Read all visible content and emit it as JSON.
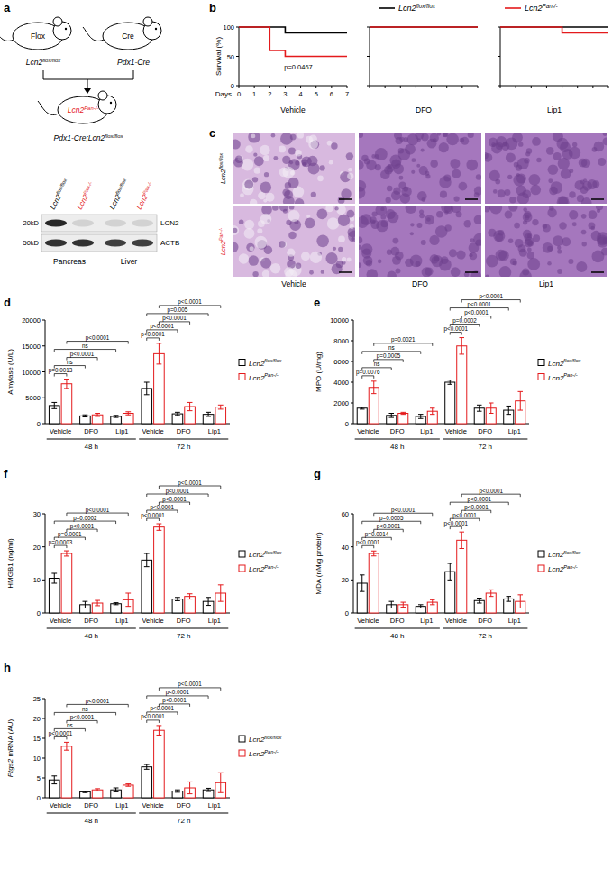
{
  "panel_a": {
    "panel": "a",
    "mice": [
      {
        "tag": "Flox",
        "label": "Lcn2flox/flox"
      },
      {
        "tag": "Cre",
        "label": "Pdx1-Cre"
      }
    ],
    "offspring": {
      "tag": "Lcn2Pan-/-",
      "label": "Pdx1-Cre;Lcn2flox/flox"
    },
    "blot": {
      "lanes": [
        "Lcn2flox/flox",
        "Lcn2Pan-/-",
        "Lcn2flox/flox",
        "Lcn2Pan-/-"
      ],
      "lane_colors": [
        "#000000",
        "#e41a1c",
        "#000000",
        "#e41a1c"
      ],
      "rows": [
        {
          "marker": "20kD",
          "protein": "LCN2"
        },
        {
          "marker": "50kD",
          "protein": "ACTB"
        }
      ],
      "tissues": [
        "Pancreas",
        "Liver"
      ]
    }
  },
  "panel_c": {
    "panel": "c",
    "rows": [
      "Lcn2flox/flox",
      "Lcn2Pan-/-"
    ],
    "row_colors": [
      "#000000",
      "#e41a1c"
    ],
    "columns": [
      "Vehicle",
      "DFO",
      "Lip1"
    ]
  },
  "chart_data": [
    {
      "panel": "b",
      "type": "line",
      "title": "Vehicle",
      "xlabel": "Days",
      "ylabel": "Survival (%)",
      "xlim": [
        0,
        7
      ],
      "xticks": [
        0,
        1,
        2,
        3,
        4,
        5,
        6,
        7
      ],
      "ylim": [
        0,
        100
      ],
      "yticks": [
        0,
        50,
        100
      ],
      "legend": "top",
      "annotations": [
        "p=0.0467"
      ],
      "series": [
        {
          "name": "Lcn2flox/flox",
          "color": "#000000",
          "x": [
            0,
            3,
            3,
            7
          ],
          "values": [
            100,
            100,
            90,
            90
          ]
        },
        {
          "name": "Lcn2Pan-/-",
          "color": "#e41a1c",
          "x": [
            0,
            2,
            2,
            3,
            3,
            7
          ],
          "values": [
            100,
            100,
            60,
            60,
            50,
            50
          ]
        }
      ]
    },
    {
      "type": "line",
      "title": "DFO",
      "tick_labels": false,
      "xlim": [
        0,
        7
      ],
      "xticks": [
        0,
        1,
        2,
        3,
        4,
        5,
        6,
        7
      ],
      "ylim": [
        0,
        100
      ],
      "yticks": [
        0,
        50,
        100
      ],
      "series": [
        {
          "name": "Lcn2flox/flox",
          "color": "#000000",
          "x": [
            0,
            7
          ],
          "values": [
            100,
            100
          ]
        },
        {
          "name": "Lcn2Pan-/-",
          "color": "#e41a1c",
          "x": [
            0,
            7
          ],
          "values": [
            100,
            100
          ]
        }
      ]
    },
    {
      "type": "line",
      "title": "Lip1",
      "tick_labels": false,
      "xlim": [
        0,
        7
      ],
      "xticks": [
        0,
        1,
        2,
        3,
        4,
        5,
        6,
        7
      ],
      "ylim": [
        0,
        100
      ],
      "yticks": [
        0,
        50,
        100
      ],
      "series": [
        {
          "name": "Lcn2flox/flox",
          "color": "#000000",
          "x": [
            0,
            7
          ],
          "values": [
            100,
            100
          ]
        },
        {
          "name": "Lcn2Pan-/-",
          "color": "#e41a1c",
          "x": [
            0,
            4,
            4,
            7
          ],
          "values": [
            100,
            100,
            90,
            90
          ]
        }
      ]
    },
    {
      "panel": "d",
      "type": "bar",
      "ylabel": "Amylase (U/L)",
      "categories": [
        "Vehicle",
        "DFO",
        "Lip1",
        "Vehicle",
        "DFO",
        "Lip1"
      ],
      "groups": [
        {
          "label": "48 h",
          "categories": [
            0,
            1,
            2
          ]
        },
        {
          "label": "72 h",
          "categories": [
            3,
            4,
            5
          ]
        }
      ],
      "ylim": [
        0,
        20000
      ],
      "yticks": [
        0,
        5000,
        10000,
        15000,
        20000
      ],
      "legend": "right",
      "series": [
        {
          "name": "Lcn2flox/flox",
          "color": "#000000",
          "values": [
            3500,
            1500,
            1400,
            6800,
            1900,
            1800
          ],
          "errors": [
            600,
            200,
            200,
            1200,
            300,
            400
          ]
        },
        {
          "name": "Lcn2Pan-/-",
          "color": "#e41a1c",
          "values": [
            7700,
            1700,
            2000,
            13500,
            3300,
            3200
          ],
          "errors": [
            900,
            300,
            300,
            2000,
            800,
            400
          ]
        }
      ],
      "comparisons": [
        {
          "from": [
            0,
            0
          ],
          "to": [
            0,
            1
          ],
          "label": "p=0.0013"
        },
        {
          "from": [
            0,
            0
          ],
          "to": [
            1,
            0
          ],
          "label": "ns"
        },
        {
          "from": [
            0,
            1
          ],
          "to": [
            1,
            1
          ],
          "label": "p<0.0001"
        },
        {
          "from": [
            0,
            0
          ],
          "to": [
            2,
            0
          ],
          "label": "ns"
        },
        {
          "from": [
            0,
            1
          ],
          "to": [
            2,
            1
          ],
          "label": "p<0.0001"
        },
        {
          "from": [
            3,
            0
          ],
          "to": [
            3,
            1
          ],
          "label": "p<0.0001"
        },
        {
          "from": [
            3,
            0
          ],
          "to": [
            4,
            0
          ],
          "label": "p<0.0001"
        },
        {
          "from": [
            3,
            1
          ],
          "to": [
            4,
            1
          ],
          "label": "p<0.0001"
        },
        {
          "from": [
            3,
            0
          ],
          "to": [
            5,
            0
          ],
          "label": "p=0.005"
        },
        {
          "from": [
            3,
            1
          ],
          "to": [
            5,
            1
          ],
          "label": "p<0.0001"
        }
      ]
    },
    {
      "panel": "e",
      "type": "bar",
      "ylabel": "MPO (U/mg)",
      "categories": [
        "Vehicle",
        "DFO",
        "Lip1",
        "Vehicle",
        "DFO",
        "Lip1"
      ],
      "groups": [
        {
          "label": "48 h",
          "categories": [
            0,
            1,
            2
          ]
        },
        {
          "label": "72 h",
          "categories": [
            3,
            4,
            5
          ]
        }
      ],
      "ylim": [
        0,
        10000
      ],
      "yticks": [
        0,
        2000,
        4000,
        6000,
        8000,
        10000
      ],
      "legend": "right",
      "series": [
        {
          "name": "Lcn2flox/flox",
          "color": "#000000",
          "values": [
            1500,
            800,
            700,
            4000,
            1500,
            1300
          ],
          "errors": [
            100,
            200,
            200,
            200,
            300,
            400
          ]
        },
        {
          "name": "Lcn2Pan-/-",
          "color": "#e41a1c",
          "values": [
            3500,
            1000,
            1200,
            7500,
            1500,
            2200
          ],
          "errors": [
            600,
            100,
            300,
            800,
            500,
            900
          ]
        }
      ],
      "comparisons": [
        {
          "from": [
            0,
            0
          ],
          "to": [
            0,
            1
          ],
          "label": "p=0.0076"
        },
        {
          "from": [
            0,
            0
          ],
          "to": [
            1,
            0
          ],
          "label": "ns"
        },
        {
          "from": [
            0,
            1
          ],
          "to": [
            1,
            1
          ],
          "label": "p=0.0005"
        },
        {
          "from": [
            0,
            0
          ],
          "to": [
            2,
            0
          ],
          "label": "ns"
        },
        {
          "from": [
            0,
            1
          ],
          "to": [
            2,
            1
          ],
          "label": "p=0.0021"
        },
        {
          "from": [
            3,
            0
          ],
          "to": [
            3,
            1
          ],
          "label": "p<0.0001"
        },
        {
          "from": [
            3,
            0
          ],
          "to": [
            4,
            0
          ],
          "label": "p=0.0002"
        },
        {
          "from": [
            3,
            1
          ],
          "to": [
            4,
            1
          ],
          "label": "p<0.0001"
        },
        {
          "from": [
            3,
            0
          ],
          "to": [
            5,
            0
          ],
          "label": "p<0.0001"
        },
        {
          "from": [
            3,
            1
          ],
          "to": [
            5,
            1
          ],
          "label": "p<0.0001"
        }
      ]
    },
    {
      "panel": "f",
      "type": "bar",
      "ylabel": "HMGB1 (ng/ml)",
      "categories": [
        "Vehicle",
        "DFO",
        "Lip1",
        "Vehicle",
        "DFO",
        "Lip1"
      ],
      "groups": [
        {
          "label": "48 h",
          "categories": [
            0,
            1,
            2
          ]
        },
        {
          "label": "72 h",
          "categories": [
            3,
            4,
            5
          ]
        }
      ],
      "ylim": [
        0,
        30
      ],
      "yticks": [
        0,
        10,
        20,
        30
      ],
      "legend": "right",
      "series": [
        {
          "name": "Lcn2flox/flox",
          "color": "#000000",
          "values": [
            10.5,
            2.5,
            2.8,
            16,
            4.2,
            3.5
          ],
          "errors": [
            1.5,
            1,
            0.3,
            2,
            0.5,
            1.2
          ]
        },
        {
          "name": "Lcn2Pan-/-",
          "color": "#e41a1c",
          "values": [
            18,
            3,
            4,
            26,
            5,
            6
          ],
          "errors": [
            0.8,
            0.8,
            2,
            1,
            0.8,
            2.5
          ]
        }
      ],
      "comparisons": [
        {
          "from": [
            0,
            0
          ],
          "to": [
            0,
            1
          ],
          "label": "p=0.0003"
        },
        {
          "from": [
            0,
            0
          ],
          "to": [
            1,
            0
          ],
          "label": "p=0.0001"
        },
        {
          "from": [
            0,
            1
          ],
          "to": [
            1,
            1
          ],
          "label": "p<0.0001"
        },
        {
          "from": [
            0,
            0
          ],
          "to": [
            2,
            0
          ],
          "label": "p=0.0002"
        },
        {
          "from": [
            0,
            1
          ],
          "to": [
            2,
            1
          ],
          "label": "p<0.0001"
        },
        {
          "from": [
            3,
            0
          ],
          "to": [
            3,
            1
          ],
          "label": "p<0.0001"
        },
        {
          "from": [
            3,
            0
          ],
          "to": [
            4,
            0
          ],
          "label": "p<0.0001"
        },
        {
          "from": [
            3,
            1
          ],
          "to": [
            4,
            1
          ],
          "label": "p<0.0001"
        },
        {
          "from": [
            3,
            0
          ],
          "to": [
            5,
            0
          ],
          "label": "p<0.0001"
        },
        {
          "from": [
            3,
            1
          ],
          "to": [
            5,
            1
          ],
          "label": "p<0.0001"
        }
      ]
    },
    {
      "panel": "g",
      "type": "bar",
      "ylabel": "MDA (nM/g protein)",
      "categories": [
        "Vehicle",
        "DFO",
        "Lip1",
        "Vehicle",
        "DFO",
        "Lip1"
      ],
      "groups": [
        {
          "label": "48 h",
          "categories": [
            0,
            1,
            2
          ]
        },
        {
          "label": "72 h",
          "categories": [
            3,
            4,
            5
          ]
        }
      ],
      "ylim": [
        0,
        60
      ],
      "yticks": [
        0,
        20,
        40,
        60
      ],
      "legend": "right",
      "series": [
        {
          "name": "Lcn2flox/flox",
          "color": "#000000",
          "values": [
            18,
            5,
            4,
            25,
            7.5,
            8.5
          ],
          "errors": [
            5,
            2,
            1,
            5,
            1.5,
            1.5
          ]
        },
        {
          "name": "Lcn2Pan-/-",
          "color": "#e41a1c",
          "values": [
            36,
            5,
            6.5,
            44,
            12,
            7
          ],
          "errors": [
            1.5,
            1.5,
            1.5,
            5,
            2,
            4
          ]
        }
      ],
      "comparisons": [
        {
          "from": [
            0,
            0
          ],
          "to": [
            0,
            1
          ],
          "label": "p<0.0001"
        },
        {
          "from": [
            0,
            0
          ],
          "to": [
            1,
            0
          ],
          "label": "p=0.0014"
        },
        {
          "from": [
            0,
            1
          ],
          "to": [
            1,
            1
          ],
          "label": "p<0.0001"
        },
        {
          "from": [
            0,
            0
          ],
          "to": [
            2,
            0
          ],
          "label": "p=0.0005"
        },
        {
          "from": [
            0,
            1
          ],
          "to": [
            2,
            1
          ],
          "label": "p<0.0001"
        },
        {
          "from": [
            3,
            0
          ],
          "to": [
            3,
            1
          ],
          "label": "p<0.0001"
        },
        {
          "from": [
            3,
            0
          ],
          "to": [
            4,
            0
          ],
          "label": "p<0.0001"
        },
        {
          "from": [
            3,
            1
          ],
          "to": [
            4,
            1
          ],
          "label": "p<0.0001"
        },
        {
          "from": [
            3,
            0
          ],
          "to": [
            5,
            0
          ],
          "label": "p<0.0001"
        },
        {
          "from": [
            3,
            1
          ],
          "to": [
            5,
            1
          ],
          "label": "p<0.0001"
        }
      ]
    },
    {
      "panel": "h",
      "type": "bar",
      "ylabel": "Ptgs2 mRNA (AU)",
      "categories": [
        "Vehicle",
        "DFO",
        "Lip1",
        "Vehicle",
        "DFO",
        "Lip1"
      ],
      "groups": [
        {
          "label": "48 h",
          "categories": [
            0,
            1,
            2
          ]
        },
        {
          "label": "72 h",
          "categories": [
            3,
            4,
            5
          ]
        }
      ],
      "ylim": [
        0,
        25
      ],
      "yticks": [
        0,
        5,
        10,
        15,
        20,
        25
      ],
      "legend": "right",
      "series": [
        {
          "name": "Lcn2flox/flox",
          "color": "#000000",
          "values": [
            4.5,
            1.5,
            2,
            7.8,
            1.7,
            2
          ],
          "errors": [
            1,
            0.2,
            0.5,
            0.6,
            0.3,
            0.4
          ]
        },
        {
          "name": "Lcn2Pan-/-",
          "color": "#e41a1c",
          "values": [
            13,
            2,
            3.2,
            17,
            2.5,
            3.8
          ],
          "errors": [
            1,
            0.3,
            0.3,
            1.2,
            1.5,
            2.5
          ]
        }
      ],
      "comparisons": [
        {
          "from": [
            0,
            0
          ],
          "to": [
            0,
            1
          ],
          "label": "p<0.0001"
        },
        {
          "from": [
            0,
            0
          ],
          "to": [
            1,
            0
          ],
          "label": "ns"
        },
        {
          "from": [
            0,
            1
          ],
          "to": [
            1,
            1
          ],
          "label": "p<0.0001"
        },
        {
          "from": [
            0,
            0
          ],
          "to": [
            2,
            0
          ],
          "label": "ns"
        },
        {
          "from": [
            0,
            1
          ],
          "to": [
            2,
            1
          ],
          "label": "p<0.0001"
        },
        {
          "from": [
            3,
            0
          ],
          "to": [
            3,
            1
          ],
          "label": "p<0.0001"
        },
        {
          "from": [
            3,
            0
          ],
          "to": [
            4,
            0
          ],
          "label": "p<0.0001"
        },
        {
          "from": [
            3,
            1
          ],
          "to": [
            4,
            1
          ],
          "label": "p<0.0001"
        },
        {
          "from": [
            3,
            0
          ],
          "to": [
            5,
            0
          ],
          "label": "p<0.0001"
        },
        {
          "from": [
            3,
            1
          ],
          "to": [
            5,
            1
          ],
          "label": "p<0.0001"
        }
      ]
    }
  ]
}
